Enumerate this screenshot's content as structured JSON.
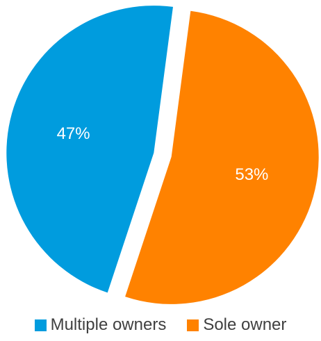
{
  "chart_data": {
    "type": "pie",
    "slices": [
      {
        "label": "Sole owner",
        "value": 53,
        "data_label": "53%",
        "color": "#FF8200"
      },
      {
        "label": "Multiple owners",
        "value": 47,
        "data_label": "47%",
        "color": "#009CDE"
      }
    ],
    "legend_position": "bottom",
    "exploded": true
  },
  "legend": {
    "items": [
      {
        "label": "Multiple owners",
        "color": "#009CDE"
      },
      {
        "label": "Sole owner",
        "color": "#FF8200"
      }
    ]
  }
}
